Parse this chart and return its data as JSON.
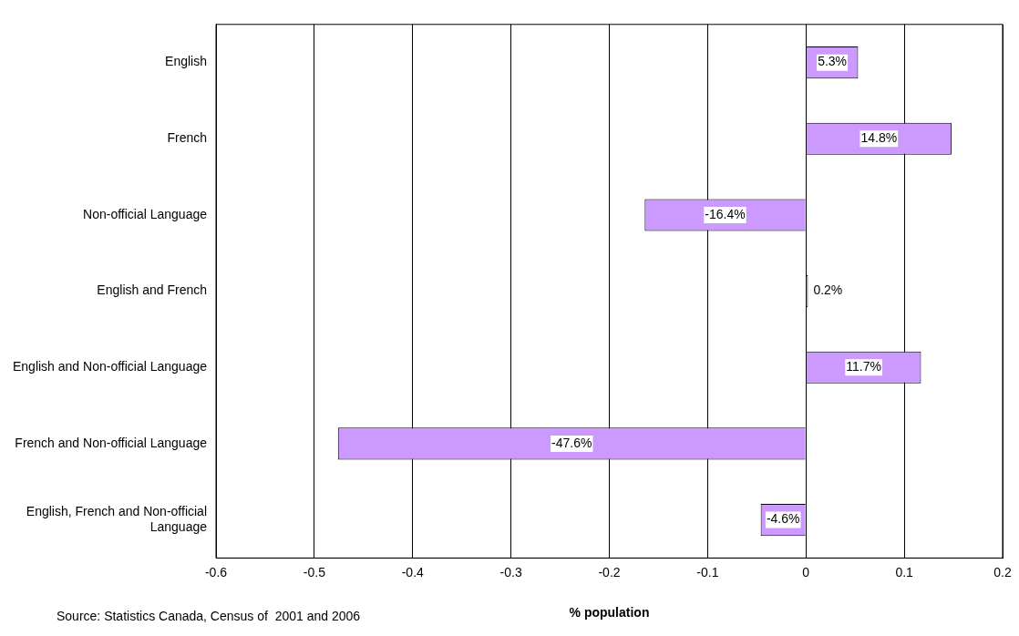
{
  "chart_data": {
    "type": "bar",
    "orientation": "horizontal",
    "xlabel": "% population",
    "categories": [
      "English",
      "French",
      "Non-official Language",
      "English and French",
      "English and Non-official Language",
      "French and Non-official Language",
      "English, French and Non-official Language"
    ],
    "values": [
      0.053,
      0.148,
      -0.164,
      0.002,
      0.117,
      -0.476,
      -0.046
    ],
    "value_labels": [
      "5.3%",
      "14.8%",
      "-16.4%",
      "0.2%",
      "11.7%",
      "-47.6%",
      "-4.6%"
    ],
    "color": "#cc99ff",
    "xlim": [
      -0.6,
      0.2
    ],
    "xticks": [
      -0.6,
      -0.5,
      -0.4,
      -0.3,
      -0.2,
      -0.1,
      0,
      0.1,
      0.2
    ],
    "grid": "x",
    "legend": false,
    "annotations": [
      "Source: Statistics Canada, Census of  2001 and 2006"
    ]
  }
}
